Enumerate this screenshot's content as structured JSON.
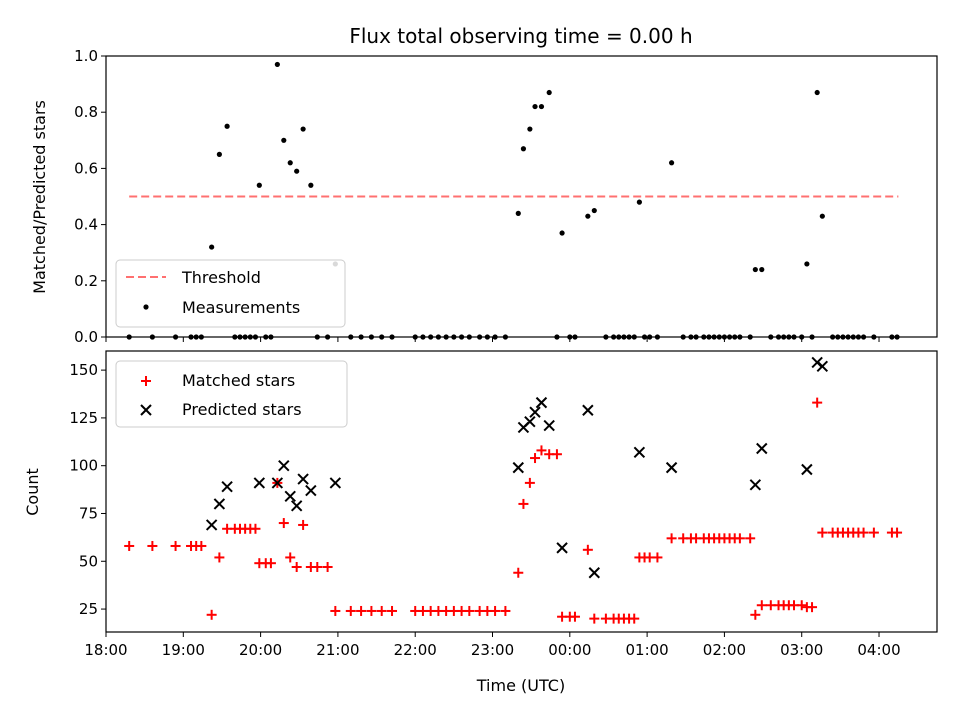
{
  "title": "Flux total observing time = 0.00 h",
  "colors": {
    "threshold": "#ff7070",
    "measurements": "#000000",
    "matched": "#ff0000",
    "predicted": "#000000"
  },
  "chart_data": [
    {
      "type": "scatter",
      "title": "Flux total observing time = 0.00 h",
      "xlabel": "",
      "ylabel": "Matched/Predicted stars",
      "xlim": [
        "18:00",
        "04:45"
      ],
      "ylim": [
        0,
        1.0
      ],
      "yticks": [
        "0.0",
        "0.2",
        "0.4",
        "0.6",
        "0.8",
        "1.0"
      ],
      "xticks": [
        "18:00",
        "19:00",
        "20:00",
        "21:00",
        "22:00",
        "23:00",
        "00:00",
        "01:00",
        "02:00",
        "03:00",
        "04:00"
      ],
      "legend": {
        "position": "lower-left",
        "entries": [
          "Threshold",
          "Measurements"
        ]
      },
      "threshold": {
        "name": "Threshold",
        "value": 0.5,
        "x_start": "18:18",
        "x_end": "04:15"
      },
      "series": [
        {
          "name": "Measurements",
          "points": [
            [
              "18:18",
              0.0
            ],
            [
              "18:36",
              0.0
            ],
            [
              "18:54",
              0.0
            ],
            [
              "19:06",
              0.0
            ],
            [
              "19:10",
              0.0
            ],
            [
              "19:14",
              0.0
            ],
            [
              "19:22",
              0.32
            ],
            [
              "19:28",
              0.65
            ],
            [
              "19:34",
              0.75
            ],
            [
              "19:40",
              0.0
            ],
            [
              "19:44",
              0.0
            ],
            [
              "19:48",
              0.0
            ],
            [
              "19:52",
              0.0
            ],
            [
              "19:56",
              0.0
            ],
            [
              "19:59",
              0.54
            ],
            [
              "20:04",
              0.0
            ],
            [
              "20:08",
              0.0
            ],
            [
              "20:13",
              0.97
            ],
            [
              "20:18",
              0.7
            ],
            [
              "20:23",
              0.62
            ],
            [
              "20:28",
              0.59
            ],
            [
              "20:33",
              0.74
            ],
            [
              "20:39",
              0.54
            ],
            [
              "20:44",
              0.0
            ],
            [
              "20:52",
              0.0
            ],
            [
              "20:58",
              0.26
            ],
            [
              "21:10",
              0.0
            ],
            [
              "21:18",
              0.0
            ],
            [
              "21:26",
              0.0
            ],
            [
              "21:34",
              0.0
            ],
            [
              "21:42",
              0.0
            ],
            [
              "22:00",
              0.0
            ],
            [
              "22:06",
              0.0
            ],
            [
              "22:12",
              0.0
            ],
            [
              "22:18",
              0.0
            ],
            [
              "22:24",
              0.0
            ],
            [
              "22:30",
              0.0
            ],
            [
              "22:36",
              0.0
            ],
            [
              "22:42",
              0.0
            ],
            [
              "22:50",
              0.0
            ],
            [
              "22:56",
              0.0
            ],
            [
              "23:02",
              0.0
            ],
            [
              "23:10",
              0.0
            ],
            [
              "23:20",
              0.44
            ],
            [
              "23:24",
              0.67
            ],
            [
              "23:29",
              0.74
            ],
            [
              "23:33",
              0.82
            ],
            [
              "23:38",
              0.82
            ],
            [
              "23:44",
              0.87
            ],
            [
              "23:50",
              0.0
            ],
            [
              "23:54",
              0.37
            ],
            [
              "24:00",
              0.0
            ],
            [
              "24:04",
              0.0
            ],
            [
              "24:14",
              0.43
            ],
            [
              "24:19",
              0.45
            ],
            [
              "24:28",
              0.0
            ],
            [
              "24:34",
              0.0
            ],
            [
              "24:38",
              0.0
            ],
            [
              "24:42",
              0.0
            ],
            [
              "24:46",
              0.0
            ],
            [
              "24:50",
              0.0
            ],
            [
              "24:54",
              0.48
            ],
            [
              "24:58",
              0.0
            ],
            [
              "25:02",
              0.0
            ],
            [
              "25:08",
              0.0
            ],
            [
              "25:19",
              0.62
            ],
            [
              "25:28",
              0.0
            ],
            [
              "25:34",
              0.0
            ],
            [
              "25:38",
              0.0
            ],
            [
              "25:44",
              0.0
            ],
            [
              "25:48",
              0.0
            ],
            [
              "25:52",
              0.0
            ],
            [
              "25:56",
              0.0
            ],
            [
              "26:00",
              0.0
            ],
            [
              "26:04",
              0.0
            ],
            [
              "26:08",
              0.0
            ],
            [
              "26:12",
              0.0
            ],
            [
              "26:20",
              0.0
            ],
            [
              "26:24",
              0.24
            ],
            [
              "26:29",
              0.24
            ],
            [
              "26:36",
              0.0
            ],
            [
              "26:42",
              0.0
            ],
            [
              "26:46",
              0.0
            ],
            [
              "26:50",
              0.0
            ],
            [
              "26:54",
              0.0
            ],
            [
              "27:00",
              0.0
            ],
            [
              "27:04",
              0.26
            ],
            [
              "27:08",
              0.0
            ],
            [
              "27:12",
              0.87
            ],
            [
              "27:16",
              0.43
            ],
            [
              "27:24",
              0.0
            ],
            [
              "27:28",
              0.0
            ],
            [
              "27:32",
              0.0
            ],
            [
              "27:36",
              0.0
            ],
            [
              "27:40",
              0.0
            ],
            [
              "27:44",
              0.0
            ],
            [
              "27:48",
              0.0
            ],
            [
              "27:56",
              0.0
            ],
            [
              "28:10",
              0.0
            ],
            [
              "28:14",
              0.0
            ]
          ]
        }
      ]
    },
    {
      "type": "scatter",
      "xlabel": "Time (UTC)",
      "ylabel": "Count",
      "xlim": [
        "18:00",
        "04:45"
      ],
      "ylim": [
        13,
        160
      ],
      "yticks": [
        "25",
        "50",
        "75",
        "100",
        "125",
        "150"
      ],
      "xticks": [
        "18:00",
        "19:00",
        "20:00",
        "21:00",
        "22:00",
        "23:00",
        "00:00",
        "01:00",
        "02:00",
        "03:00",
        "04:00"
      ],
      "legend": {
        "position": "upper-left",
        "entries": [
          "Matched stars",
          "Predicted stars"
        ]
      },
      "series": [
        {
          "name": "Matched stars",
          "points": [
            [
              "18:18",
              58
            ],
            [
              "18:36",
              58
            ],
            [
              "18:54",
              58
            ],
            [
              "19:06",
              58
            ],
            [
              "19:10",
              58
            ],
            [
              "19:14",
              58
            ],
            [
              "19:22",
              22
            ],
            [
              "19:28",
              52
            ],
            [
              "19:34",
              67
            ],
            [
              "19:40",
              67
            ],
            [
              "19:44",
              67
            ],
            [
              "19:48",
              67
            ],
            [
              "19:52",
              67
            ],
            [
              "19:56",
              67
            ],
            [
              "19:59",
              49
            ],
            [
              "20:04",
              49
            ],
            [
              "20:08",
              49
            ],
            [
              "20:13",
              91
            ],
            [
              "20:18",
              70
            ],
            [
              "20:23",
              52
            ],
            [
              "20:28",
              47
            ],
            [
              "20:33",
              69
            ],
            [
              "20:39",
              47
            ],
            [
              "20:44",
              47
            ],
            [
              "20:52",
              47
            ],
            [
              "20:58",
              24
            ],
            [
              "21:10",
              24
            ],
            [
              "21:18",
              24
            ],
            [
              "21:26",
              24
            ],
            [
              "21:34",
              24
            ],
            [
              "21:42",
              24
            ],
            [
              "22:00",
              24
            ],
            [
              "22:06",
              24
            ],
            [
              "22:12",
              24
            ],
            [
              "22:18",
              24
            ],
            [
              "22:24",
              24
            ],
            [
              "22:30",
              24
            ],
            [
              "22:36",
              24
            ],
            [
              "22:42",
              24
            ],
            [
              "22:50",
              24
            ],
            [
              "22:56",
              24
            ],
            [
              "23:02",
              24
            ],
            [
              "23:10",
              24
            ],
            [
              "23:20",
              44
            ],
            [
              "23:24",
              80
            ],
            [
              "23:29",
              91
            ],
            [
              "23:33",
              104
            ],
            [
              "23:38",
              108
            ],
            [
              "23:44",
              106
            ],
            [
              "23:50",
              106
            ],
            [
              "23:54",
              21
            ],
            [
              "24:00",
              21
            ],
            [
              "24:04",
              21
            ],
            [
              "24:14",
              56
            ],
            [
              "24:19",
              20
            ],
            [
              "24:28",
              20
            ],
            [
              "24:34",
              20
            ],
            [
              "24:38",
              20
            ],
            [
              "24:42",
              20
            ],
            [
              "24:46",
              20
            ],
            [
              "24:50",
              20
            ],
            [
              "24:54",
              52
            ],
            [
              "24:58",
              52
            ],
            [
              "25:02",
              52
            ],
            [
              "25:08",
              52
            ],
            [
              "25:19",
              62
            ],
            [
              "25:28",
              62
            ],
            [
              "25:34",
              62
            ],
            [
              "25:38",
              62
            ],
            [
              "25:44",
              62
            ],
            [
              "25:48",
              62
            ],
            [
              "25:52",
              62
            ],
            [
              "25:56",
              62
            ],
            [
              "26:00",
              62
            ],
            [
              "26:04",
              62
            ],
            [
              "26:08",
              62
            ],
            [
              "26:12",
              62
            ],
            [
              "26:20",
              62
            ],
            [
              "26:24",
              22
            ],
            [
              "26:29",
              27
            ],
            [
              "26:36",
              27
            ],
            [
              "26:42",
              27
            ],
            [
              "26:46",
              27
            ],
            [
              "26:50",
              27
            ],
            [
              "26:54",
              27
            ],
            [
              "27:00",
              27
            ],
            [
              "27:04",
              26
            ],
            [
              "27:08",
              26
            ],
            [
              "27:12",
              133
            ],
            [
              "27:16",
              65
            ],
            [
              "27:24",
              65
            ],
            [
              "27:28",
              65
            ],
            [
              "27:32",
              65
            ],
            [
              "27:36",
              65
            ],
            [
              "27:40",
              65
            ],
            [
              "27:44",
              65
            ],
            [
              "27:48",
              65
            ],
            [
              "27:56",
              65
            ],
            [
              "28:10",
              65
            ],
            [
              "28:14",
              65
            ]
          ]
        },
        {
          "name": "Predicted stars",
          "points": [
            [
              "19:22",
              69
            ],
            [
              "19:28",
              80
            ],
            [
              "19:34",
              89
            ],
            [
              "19:59",
              91
            ],
            [
              "20:13",
              91
            ],
            [
              "20:18",
              100
            ],
            [
              "20:23",
              84
            ],
            [
              "20:28",
              79
            ],
            [
              "20:33",
              93
            ],
            [
              "20:39",
              87
            ],
            [
              "20:58",
              91
            ],
            [
              "23:20",
              99
            ],
            [
              "23:24",
              120
            ],
            [
              "23:29",
              123
            ],
            [
              "23:33",
              128
            ],
            [
              "23:38",
              133
            ],
            [
              "23:44",
              121
            ],
            [
              "23:54",
              57
            ],
            [
              "24:14",
              129
            ],
            [
              "24:19",
              44
            ],
            [
              "24:54",
              107
            ],
            [
              "25:19",
              99
            ],
            [
              "26:24",
              90
            ],
            [
              "26:29",
              109
            ],
            [
              "27:04",
              98
            ],
            [
              "27:12",
              154
            ],
            [
              "27:16",
              152
            ]
          ]
        }
      ]
    }
  ]
}
